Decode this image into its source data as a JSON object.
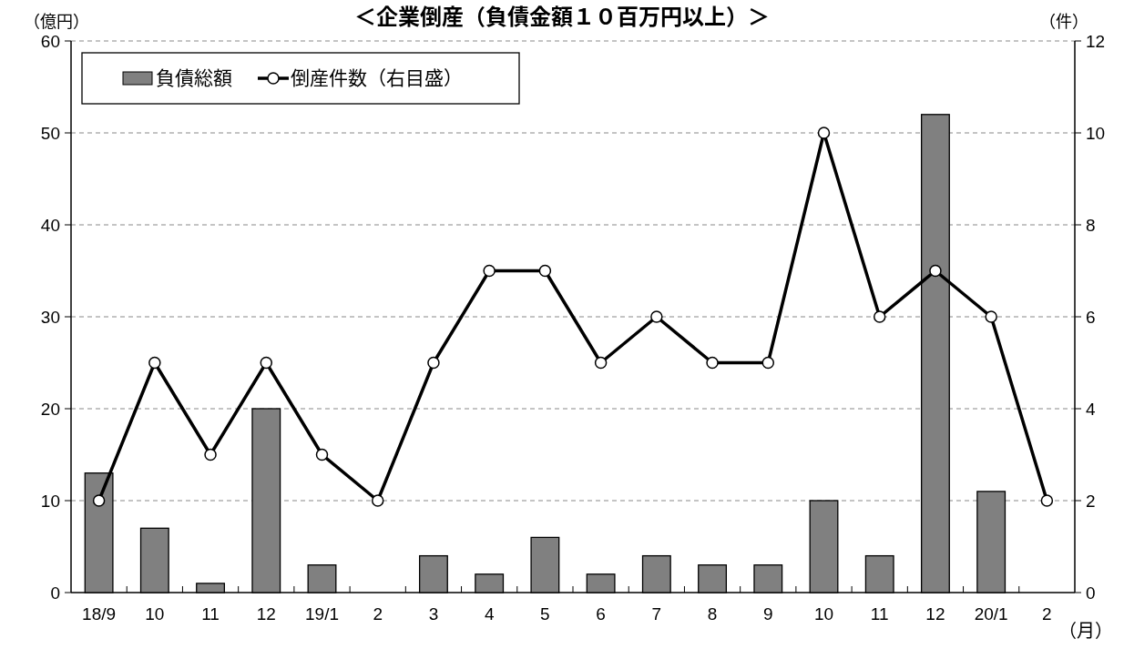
{
  "chart_data": {
    "type": "bar",
    "title": "＜企業倒産（負債金額１０百万円以上）＞",
    "ylabel": "（億円）",
    "y2label": "（件）",
    "xlabel": "（月）",
    "categories": [
      "18/9",
      "10",
      "11",
      "12",
      "19/1",
      "2",
      "3",
      "4",
      "5",
      "6",
      "7",
      "8",
      "9",
      "10",
      "11",
      "12",
      "20/1",
      "2"
    ],
    "series": [
      {
        "name": "負債総額",
        "color": "#808080",
        "values": [
          13,
          7,
          1,
          20,
          3,
          0,
          4,
          2,
          6,
          2,
          4,
          3,
          3,
          10,
          4,
          52,
          11,
          0
        ]
      },
      {
        "name": "倒産件数（右目盛）",
        "type": "line",
        "axis": "y2",
        "color": "#000000",
        "marker": "circle",
        "values": [
          2,
          5,
          3,
          5,
          3,
          2,
          5,
          7,
          7,
          5,
          6,
          5,
          5,
          10,
          6,
          7,
          6,
          2
        ]
      }
    ],
    "ylim": [
      0,
      60
    ],
    "yticks": [
      0,
      10,
      20,
      30,
      40,
      50,
      60
    ],
    "y2lim": [
      0,
      12
    ],
    "y2ticks": [
      0,
      2,
      4,
      6,
      8,
      10,
      12
    ],
    "grid": "y",
    "legend": "top left"
  }
}
